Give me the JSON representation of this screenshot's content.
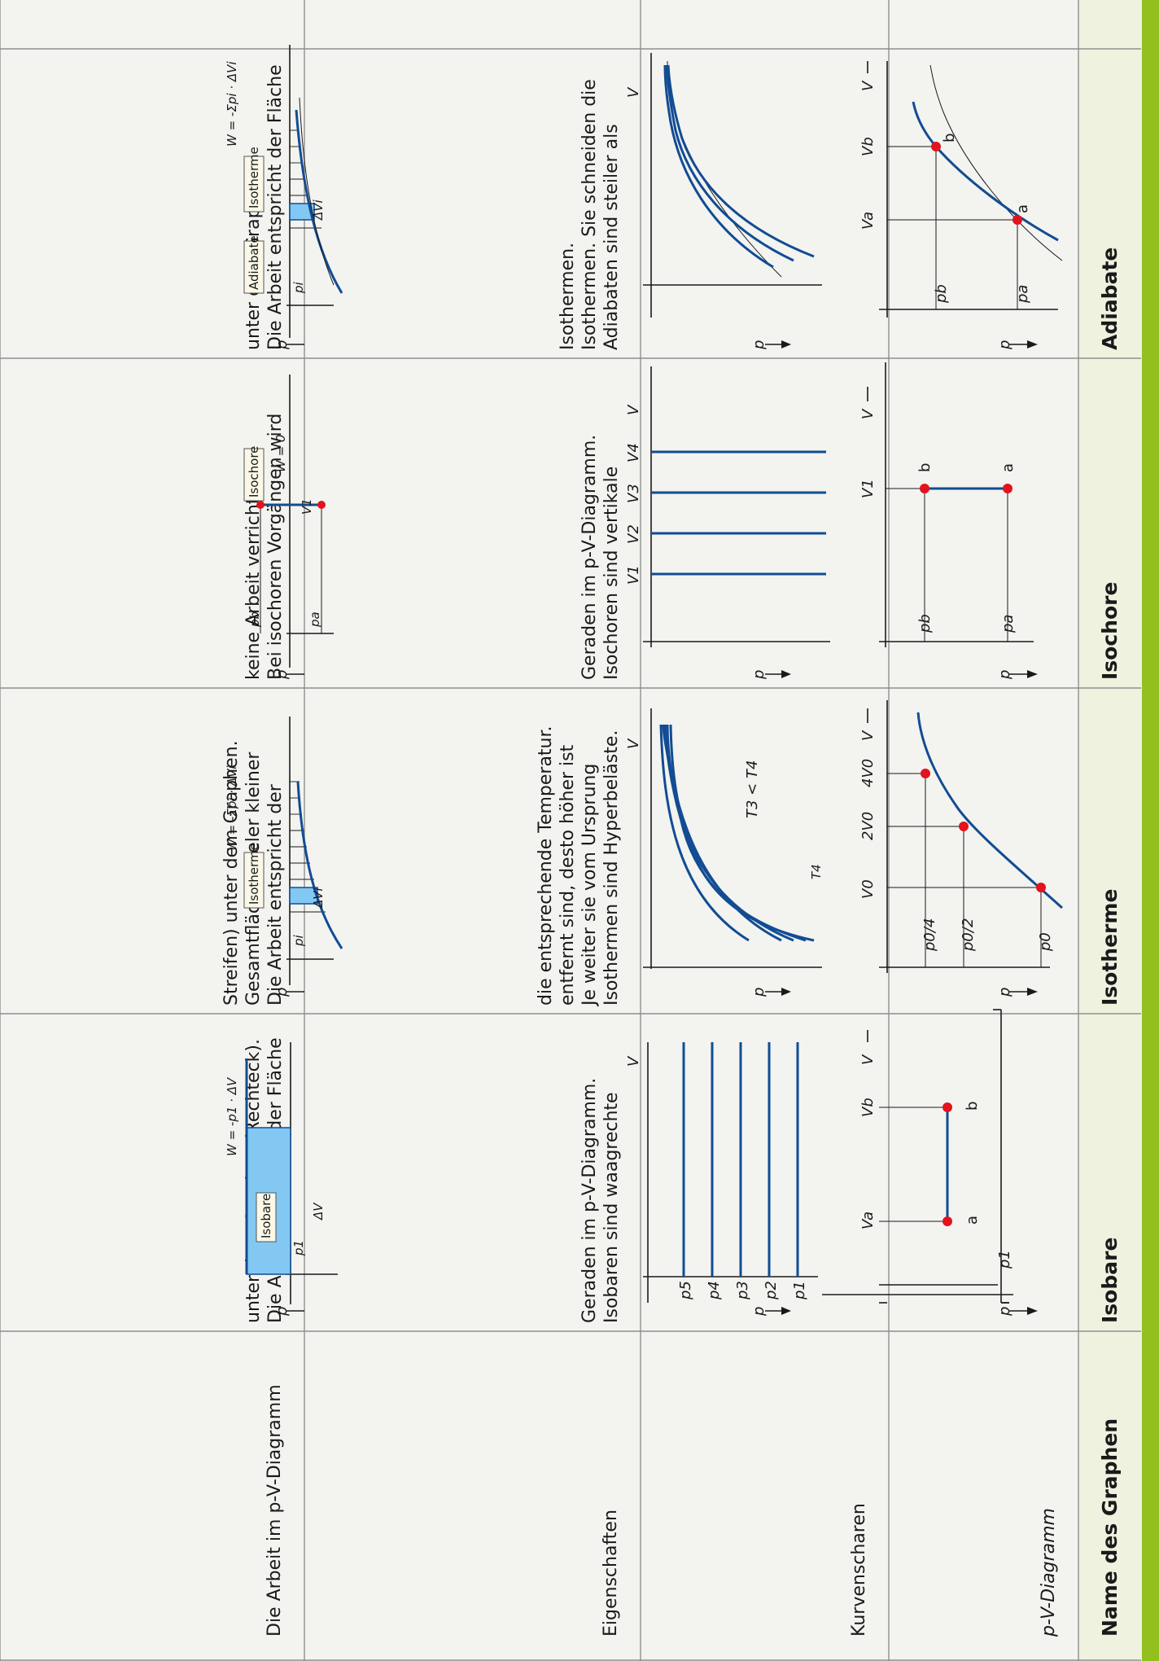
{
  "header": {
    "row_label": "Name des Graphen",
    "columns": [
      "Isobare",
      "Isotherme",
      "Isochore",
      "Adiabate"
    ]
  },
  "rows": {
    "pv": "p-V-Diagramm",
    "family": "Kurvenscharen",
    "properties": "Eigenschaften",
    "work": "Die Arbeit im p-V-Diagramm"
  },
  "properties": {
    "isobare": [
      "Isobaren sind waagrechte",
      "Geraden im p-V-Diagramm."
    ],
    "isotherme": [
      "Isothermen sind Hyperbeläste.",
      "Je weiter sie vom Ursprung",
      "entfernt sind, desto höher ist",
      "die entsprechende Temperatur."
    ],
    "isochore": [
      "Isochoren sind vertikale",
      "Geraden im p-V-Diagramm."
    ],
    "adiabate": [
      "Adiabaten sind steiler als",
      "Isothermen. Sie schneiden die",
      "Isothermen."
    ]
  },
  "work_text": {
    "isobare": [
      "Die Arbeit entspricht der Fläche",
      "unter dem Graphen (Rechteck)."
    ],
    "isotherme": [
      "Die Arbeit entspricht der",
      "Gesamtfläche (vieler kleiner",
      "Streifen) unter dem Graphen."
    ],
    "isochore": [
      "Bei isochoren Vorgängen wird",
      "keine Arbeit verrichtet."
    ],
    "adiabate": [
      "Die Arbeit entspricht der Fläche",
      "unter dem Graphen."
    ]
  },
  "labels": {
    "p_axis": "p",
    "v_axis": "V",
    "point_a": "a",
    "point_b": "b",
    "p1": "p1",
    "pa": "pa",
    "pb": "pb",
    "va": "Va",
    "vb": "Vb",
    "v1": "V1",
    "p0": "p0",
    "p0_half": "p0/2",
    "p0_quarter": "p0/4",
    "v0": "V0",
    "v0_2": "2V0",
    "v0_4": "4V0",
    "isobar_family": [
      "p1",
      "p2",
      "p3",
      "p4",
      "p5"
    ],
    "isochor_family": [
      "V1",
      "V2",
      "V3",
      "V4"
    ],
    "t4": "T4",
    "t_relation": "T3 < T4",
    "tag_isobare": "Isobare",
    "tag_isotherme": "Isotherme",
    "tag_isochore": "Isochore",
    "tag_adiabate": "Adiabate",
    "work_isobare": "W = -p1 · ΔV",
    "work_isotherme": "W = -Σpi · ΔVi",
    "work_isochore": "W = 0",
    "delta_v": "ΔV",
    "delta_vi": "ΔVi",
    "pi": "pi"
  },
  "colors": {
    "accent_green": "#93c01f",
    "header_bg": "#eef2df",
    "cell_bg": "#f3f3f0",
    "curve_blue": "#124c93",
    "fill_blue": "#82c8f3",
    "point_red": "#e2131b"
  }
}
